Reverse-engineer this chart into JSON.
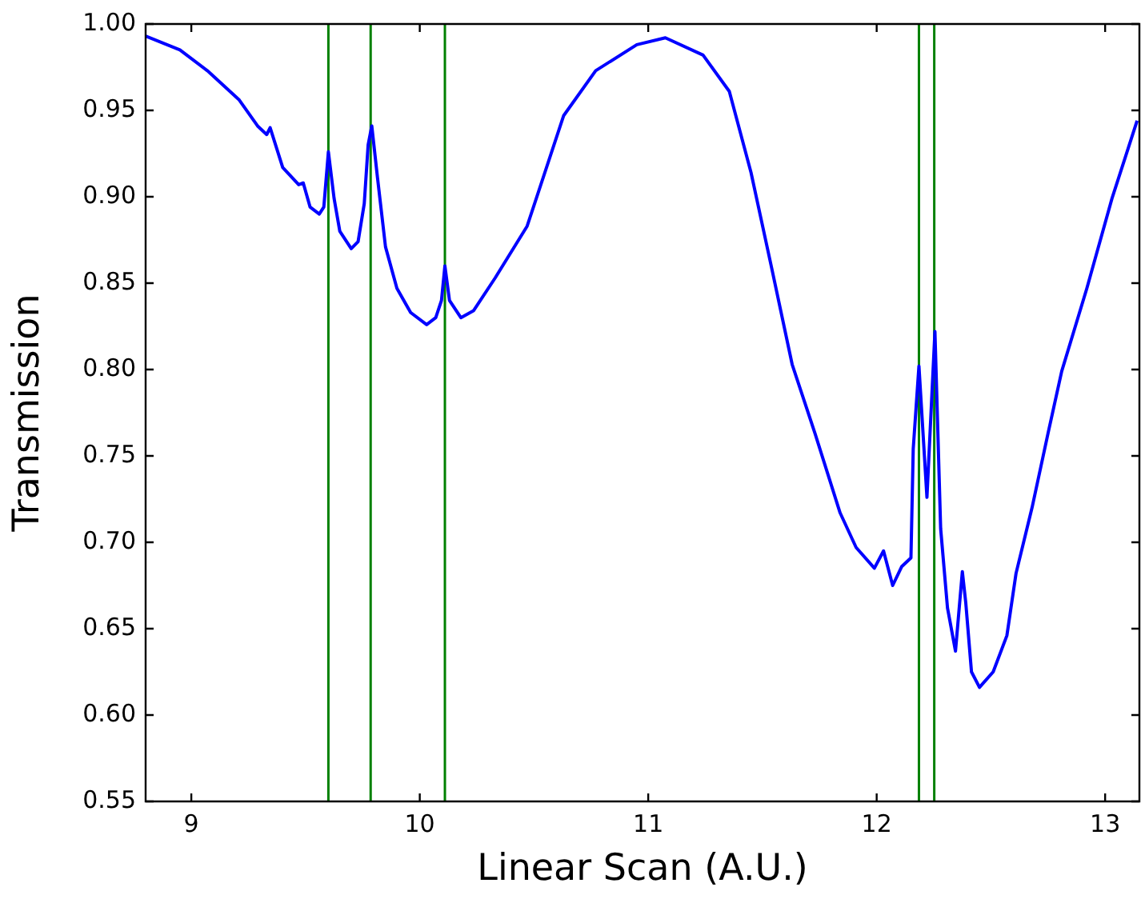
{
  "chart_data": {
    "type": "line",
    "xlabel": "Linear Scan (A.U.)",
    "ylabel": "Transmission",
    "xlim": [
      8.8,
      13.15
    ],
    "ylim": [
      0.55,
      1.0
    ],
    "xticks": [
      9,
      10,
      11,
      12,
      13
    ],
    "yticks": [
      {
        "value": 0.55,
        "label": "0.55"
      },
      {
        "value": 0.6,
        "label": "0.60"
      },
      {
        "value": 0.65,
        "label": "0.65"
      },
      {
        "value": 0.7,
        "label": "0.70"
      },
      {
        "value": 0.75,
        "label": "0.75"
      },
      {
        "value": 0.8,
        "label": "0.80"
      },
      {
        "value": 0.85,
        "label": "0.85"
      },
      {
        "value": 0.9,
        "label": "0.90"
      },
      {
        "value": 0.95,
        "label": "0.95"
      },
      {
        "value": 1.0,
        "label": "1.00"
      }
    ],
    "grid": false,
    "legend": false,
    "marker": "none",
    "line_style": "solid",
    "x": [
      8.8,
      8.95,
      9.07,
      9.21,
      9.29,
      9.33,
      9.345,
      9.4,
      9.47,
      9.49,
      9.52,
      9.56,
      9.58,
      9.6,
      9.625,
      9.65,
      9.7,
      9.73,
      9.757,
      9.774,
      9.79,
      9.815,
      9.85,
      9.9,
      9.96,
      10.03,
      10.07,
      10.095,
      10.11,
      10.13,
      10.18,
      10.235,
      10.33,
      10.47,
      10.63,
      10.77,
      10.95,
      11.075,
      11.24,
      11.355,
      11.45,
      11.54,
      11.63,
      11.73,
      11.84,
      11.91,
      11.99,
      12.03,
      12.07,
      12.11,
      12.15,
      12.16,
      12.185,
      12.22,
      12.255,
      12.28,
      12.31,
      12.345,
      12.375,
      12.39,
      12.415,
      12.45,
      12.51,
      12.57,
      12.61,
      12.68,
      12.75,
      12.81,
      12.92,
      13.03,
      13.14
    ],
    "series": [
      {
        "color": "#0000ff",
        "values": [
          0.993,
          0.985,
          0.973,
          0.956,
          0.941,
          0.936,
          0.94,
          0.917,
          0.907,
          0.908,
          0.894,
          0.89,
          0.894,
          0.926,
          0.899,
          0.88,
          0.87,
          0.874,
          0.896,
          0.93,
          0.941,
          0.911,
          0.871,
          0.847,
          0.833,
          0.826,
          0.83,
          0.84,
          0.86,
          0.84,
          0.83,
          0.834,
          0.853,
          0.883,
          0.947,
          0.973,
          0.988,
          0.992,
          0.982,
          0.961,
          0.914,
          0.859,
          0.803,
          0.763,
          0.717,
          0.697,
          0.685,
          0.695,
          0.675,
          0.686,
          0.691,
          0.754,
          0.802,
          0.726,
          0.822,
          0.708,
          0.662,
          0.637,
          0.683,
          0.665,
          0.625,
          0.616,
          0.625,
          0.646,
          0.682,
          0.72,
          0.763,
          0.799,
          0.847,
          0.899,
          0.944
        ]
      }
    ],
    "ref_lines": [
      {
        "axis": "x",
        "value": 9.6,
        "color": "#008000"
      },
      {
        "axis": "x",
        "value": 9.785,
        "color": "#008000"
      },
      {
        "axis": "x",
        "value": 10.11,
        "color": "#008000"
      },
      {
        "axis": "x",
        "value": 12.185,
        "color": "#008000"
      },
      {
        "axis": "x",
        "value": 12.252,
        "color": "#008000"
      }
    ]
  }
}
